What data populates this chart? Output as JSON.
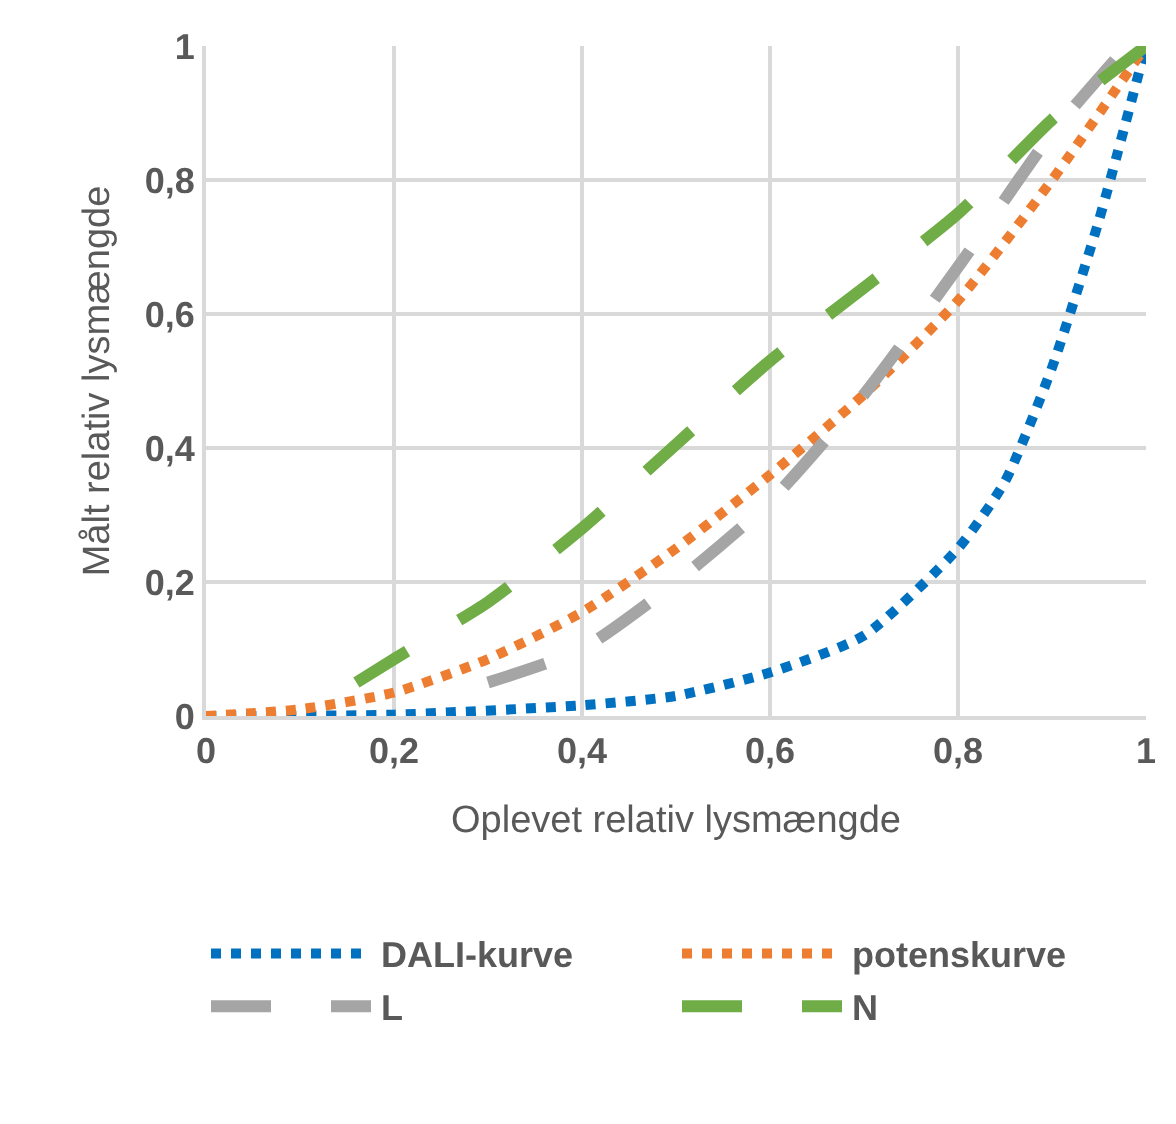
{
  "chart_data": {
    "type": "line",
    "xlabel": "Oplevet relativ lysmængde",
    "ylabel": "Målt relativ lysmængde",
    "xlim": [
      0,
      1
    ],
    "ylim": [
      0,
      1
    ],
    "xticks": [
      0,
      {
        "value": 0.2,
        "label": "0,2"
      },
      {
        "value": 0.4,
        "label": "0,4"
      },
      {
        "value": 0.6,
        "label": "0,6"
      },
      {
        "value": 0.8,
        "label": "0,8"
      },
      1
    ],
    "yticks": [
      0,
      {
        "value": 0.2,
        "label": "0,2"
      },
      {
        "value": 0.4,
        "label": "0,4"
      },
      {
        "value": 0.6,
        "label": "0,6"
      },
      {
        "value": 0.8,
        "label": "0,8"
      },
      1
    ],
    "grid": true,
    "legend": "bottom",
    "marker": "none",
    "series": [
      {
        "name": "DALI-kurve",
        "color": "#0070c0",
        "line_style": "dotted",
        "x": [
          0,
          0.2,
          0.4,
          0.5,
          0.6,
          0.7,
          0.8,
          0.85,
          0.9,
          0.95,
          1
        ],
        "values": [
          0,
          0.002,
          0.016,
          0.03,
          0.065,
          0.12,
          0.25,
          0.35,
          0.52,
          0.74,
          1
        ]
      },
      {
        "name": "potenskurve",
        "color": "#ed7d31",
        "line_style": "dotted",
        "x": [
          0,
          0.1,
          0.2,
          0.3,
          0.4,
          0.5,
          0.6,
          0.7,
          0.8,
          0.9,
          1
        ],
        "values": [
          0,
          0.01,
          0.035,
          0.085,
          0.155,
          0.25,
          0.36,
          0.48,
          0.62,
          0.8,
          1
        ]
      },
      {
        "name": "L",
        "color": "#a5a5a5",
        "line_style": "dashed",
        "x": [
          0.3,
          0.4,
          0.5,
          0.6,
          0.7,
          0.8,
          0.9,
          0.98
        ],
        "values": [
          0.05,
          0.1,
          0.2,
          0.32,
          0.48,
          0.67,
          0.87,
          1
        ]
      },
      {
        "name": "N",
        "color": "#70ad47",
        "line_style": "dashed",
        "x": [
          0.16,
          0.2,
          0.3,
          0.4,
          0.6,
          0.8,
          0.9,
          1
        ],
        "values": [
          0.05,
          0.085,
          0.17,
          0.28,
          0.53,
          0.75,
          0.89,
          1
        ]
      }
    ]
  }
}
